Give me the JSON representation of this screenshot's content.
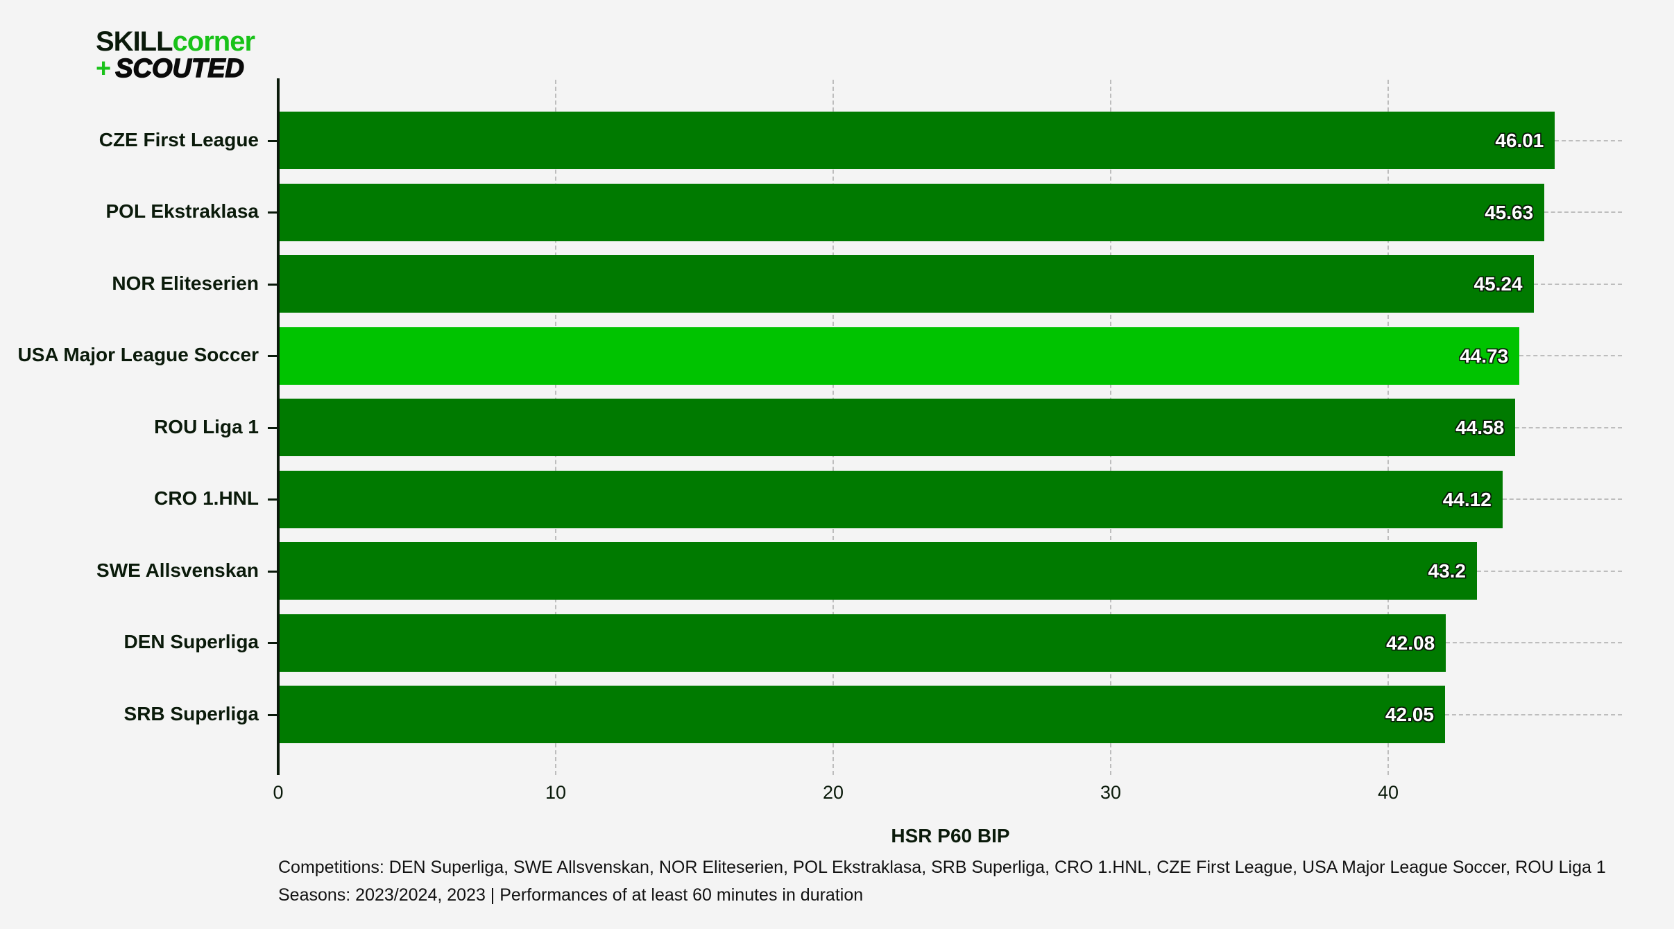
{
  "logo": {
    "line1_a": "SKILL",
    "line1_b": "corner",
    "line2_plus": "+",
    "line2_b": "SCOUTED"
  },
  "colors": {
    "background": "#f4f4f4",
    "bar_default": "#007a00",
    "bar_highlight": "#00c300",
    "text_dark": "#0a1a0a",
    "grid": "#bdbdbd",
    "logo_green": "#19c219"
  },
  "chart_data": {
    "type": "bar",
    "orientation": "horizontal",
    "categories": [
      "CZE First League",
      "POL Ekstraklasa",
      "NOR Eliteserien",
      "USA Major League Soccer",
      "ROU Liga 1",
      "CRO 1.HNL",
      "SWE Allsvenskan",
      "DEN Superliga",
      "SRB Superliga"
    ],
    "values": [
      46.01,
      45.63,
      45.24,
      44.73,
      44.58,
      44.12,
      43.2,
      42.08,
      42.05
    ],
    "value_labels": [
      "46.01",
      "45.63",
      "45.24",
      "44.73",
      "44.58",
      "44.12",
      "43.2",
      "42.08",
      "42.05"
    ],
    "highlighted": [
      "USA Major League Soccer"
    ],
    "title": "",
    "xlabel": "HSR P60 BIP",
    "ylabel": "",
    "xlim": [
      0,
      48.4
    ],
    "xticks": [
      0,
      10,
      20,
      30,
      40
    ],
    "xtick_labels": [
      "0",
      "10",
      "20",
      "30",
      "40"
    ],
    "grid": "vertical dashed",
    "legend": "none"
  },
  "footnotes": {
    "competitions": "Competitions: DEN Superliga, SWE Allsvenskan, NOR Eliteserien, POL Ekstraklasa, SRB Superliga, CRO 1.HNL, CZE First League, USA Major League Soccer, ROU Liga 1",
    "seasons": "Seasons: 2023/2024, 2023 | Performances of at least 60 minutes in duration"
  }
}
